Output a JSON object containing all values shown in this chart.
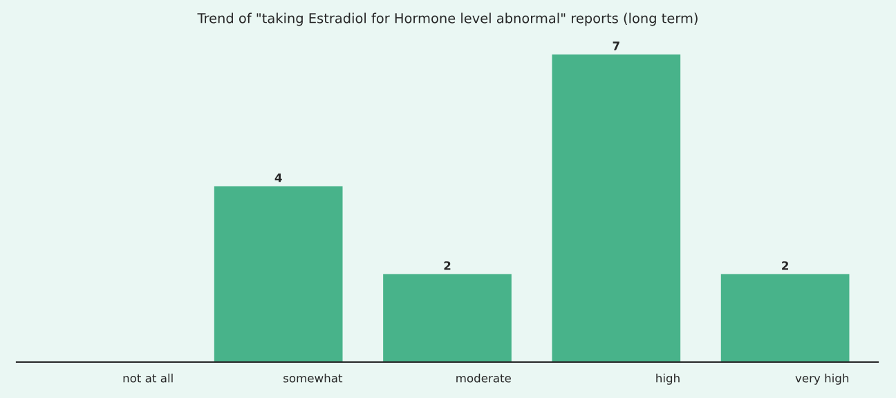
{
  "chart_data": {
    "type": "bar",
    "title": "Trend of \"taking Estradiol for Hormone level abnormal\" reports (long term)",
    "categories": [
      "not at all",
      "somewhat",
      "moderate",
      "high",
      "very high"
    ],
    "values": [
      0,
      4,
      2,
      7,
      2
    ],
    "value_labels": [
      null,
      "4",
      "2",
      "7",
      "2"
    ],
    "color": "#48b38a",
    "grid": false,
    "legend": false
  }
}
